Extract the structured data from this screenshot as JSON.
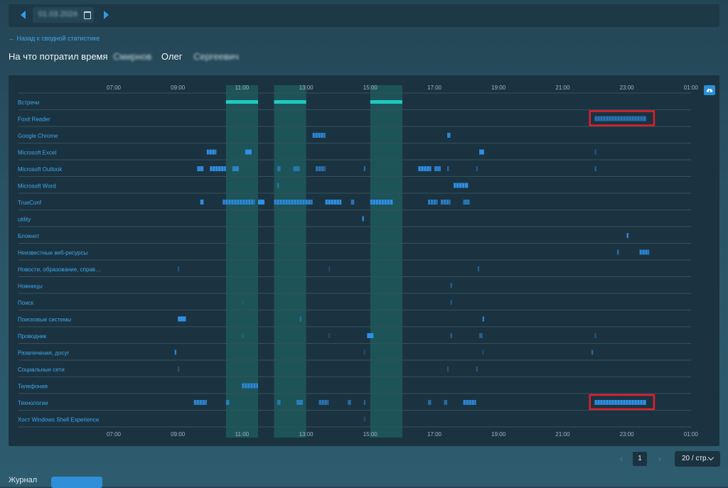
{
  "toolbar": {
    "date_text": "01.03.2024",
    "prev_icon": "chevron-left-icon",
    "next_icon": "chevron-right-icon",
    "calendar_icon": "calendar-icon"
  },
  "back_link": "← Назад к сводной статистике",
  "title": {
    "label": "На что потратил время",
    "last_name_blurred": "Смирнов",
    "first_name": "Олег",
    "patronymic_blurred": "Сергеевич"
  },
  "colors": {
    "accent": "#2f9be8",
    "meeting": "#1fc9c2",
    "activity": "#2f8fe6",
    "highlight_box": "#e21e2a",
    "meeting_band": "#1f6f6c"
  },
  "chart_data": {
    "type": "timeline",
    "time_ticks": [
      "07:00",
      "09:00",
      "11:00",
      "13:00",
      "15:00",
      "17:00",
      "19:00",
      "21:00",
      "23:00",
      "01:00"
    ],
    "rows": [
      "Встречи",
      "Foxit Reader",
      "Google Chrome",
      "Microsoft Excel",
      "Microsoft Outlook",
      "Microsoft Word",
      "TrueConf",
      "utility",
      "Блокнот",
      "Неизвестные веб-ресурсы",
      "Новости, образование, справ…",
      "Ножницы",
      "Поиск",
      "Поисковые системы",
      "Проводник",
      "Развлечения, досуг",
      "Социальные сети",
      "Телефония",
      "Технологии",
      "Хост Windows Shell Experience"
    ],
    "meeting_bands": [
      [
        10.5,
        11.5
      ],
      [
        12.0,
        13.0
      ],
      [
        15.0,
        16.0
      ]
    ],
    "activity": [
      {
        "row": 0,
        "segments": [
          [
            10.5,
            11.5,
            1
          ],
          [
            12.0,
            13.0,
            1
          ],
          [
            15.0,
            16.0,
            1
          ]
        ]
      },
      {
        "row": 1,
        "segments": [
          [
            22.0,
            23.6,
            0.7
          ]
        ]
      },
      {
        "row": 2,
        "segments": [
          [
            13.2,
            13.6,
            0.9
          ],
          [
            17.4,
            17.5,
            0.9
          ]
        ]
      },
      {
        "row": 3,
        "segments": [
          [
            9.9,
            10.2,
            1
          ],
          [
            11.1,
            11.3,
            1
          ],
          [
            18.4,
            18.55,
            1
          ],
          [
            22.0,
            22.05,
            0.4
          ]
        ]
      },
      {
        "row": 4,
        "segments": [
          [
            9.6,
            9.8,
            0.9
          ],
          [
            10.0,
            10.5,
            1
          ],
          [
            10.7,
            10.9,
            0.8
          ],
          [
            12.1,
            12.2,
            0.6
          ],
          [
            12.6,
            12.8,
            0.6
          ],
          [
            13.3,
            13.6,
            0.7
          ],
          [
            14.8,
            14.85,
            0.6
          ],
          [
            16.5,
            16.9,
            1
          ],
          [
            17.0,
            17.2,
            0.8
          ],
          [
            17.4,
            17.45,
            0.6
          ],
          [
            18.3,
            18.35,
            0.4
          ],
          [
            22.0,
            22.05,
            0.5
          ]
        ]
      },
      {
        "row": 5,
        "segments": [
          [
            12.1,
            12.15,
            0.6
          ],
          [
            17.6,
            18.05,
            1
          ]
        ]
      },
      {
        "row": 6,
        "segments": [
          [
            9.7,
            9.8,
            1
          ],
          [
            10.4,
            11.4,
            0.9
          ],
          [
            11.5,
            11.7,
            1
          ],
          [
            12.0,
            13.2,
            0.9
          ],
          [
            13.6,
            14.1,
            1
          ],
          [
            14.4,
            14.5,
            0.7
          ],
          [
            15.0,
            15.7,
            1
          ],
          [
            16.8,
            17.1,
            0.8
          ],
          [
            17.2,
            17.5,
            0.8
          ],
          [
            17.9,
            18.1,
            0.7
          ]
        ]
      },
      {
        "row": 7,
        "segments": [
          [
            14.75,
            14.8,
            1
          ]
        ]
      },
      {
        "row": 8,
        "segments": [
          [
            23.0,
            23.05,
            1
          ]
        ]
      },
      {
        "row": 9,
        "segments": [
          [
            22.7,
            22.75,
            0.7
          ],
          [
            23.4,
            23.7,
            0.9
          ]
        ]
      },
      {
        "row": 10,
        "segments": [
          [
            9.0,
            9.03,
            0.4
          ],
          [
            13.7,
            13.73,
            0.3
          ],
          [
            18.35,
            18.4,
            0.5
          ]
        ]
      },
      {
        "row": 11,
        "segments": [
          [
            17.5,
            17.55,
            0.5
          ]
        ]
      },
      {
        "row": 12,
        "segments": [
          [
            11.0,
            11.03,
            0.2
          ],
          [
            17.5,
            17.55,
            0.4
          ]
        ]
      },
      {
        "row": 13,
        "segments": [
          [
            9.0,
            9.25,
            1
          ],
          [
            12.8,
            12.85,
            0.5
          ],
          [
            18.5,
            18.55,
            0.9
          ]
        ]
      },
      {
        "row": 14,
        "segments": [
          [
            11.0,
            11.03,
            0.3
          ],
          [
            13.7,
            13.73,
            0.3
          ],
          [
            14.9,
            15.1,
            1
          ],
          [
            17.5,
            17.55,
            0.5
          ],
          [
            18.4,
            18.5,
            0.5
          ],
          [
            22.0,
            22.05,
            0.4
          ]
        ]
      },
      {
        "row": 15,
        "segments": [
          [
            8.9,
            8.95,
            0.9
          ],
          [
            14.8,
            14.83,
            0.3
          ],
          [
            18.5,
            18.53,
            0.3
          ],
          [
            21.9,
            21.95,
            0.6
          ]
        ]
      },
      {
        "row": 16,
        "segments": [
          [
            9.0,
            9.03,
            0.4
          ],
          [
            17.4,
            17.43,
            0.4
          ],
          [
            18.3,
            18.35,
            0.4
          ]
        ]
      },
      {
        "row": 17,
        "segments": [
          [
            11.0,
            11.5,
            0.9
          ]
        ]
      },
      {
        "row": 18,
        "segments": [
          [
            9.5,
            9.9,
            0.9
          ],
          [
            10.5,
            10.6,
            0.7
          ],
          [
            12.1,
            12.2,
            0.6
          ],
          [
            12.7,
            12.9,
            0.7
          ],
          [
            13.4,
            13.7,
            0.7
          ],
          [
            14.3,
            14.4,
            0.6
          ],
          [
            14.8,
            14.85,
            0.5
          ],
          [
            16.8,
            16.9,
            0.6
          ],
          [
            17.3,
            17.4,
            0.6
          ],
          [
            17.9,
            18.3,
            0.9
          ],
          [
            22.0,
            23.6,
            1
          ]
        ]
      },
      {
        "row": 19,
        "segments": [
          [
            14.8,
            14.83,
            0.3
          ]
        ]
      }
    ],
    "highlighted_rows": [
      1,
      18
    ]
  },
  "pagination": {
    "prev": "‹",
    "current": "1",
    "next": "›",
    "page_size": "20 / стр."
  },
  "journal": {
    "label": "Журнал",
    "button": ""
  }
}
